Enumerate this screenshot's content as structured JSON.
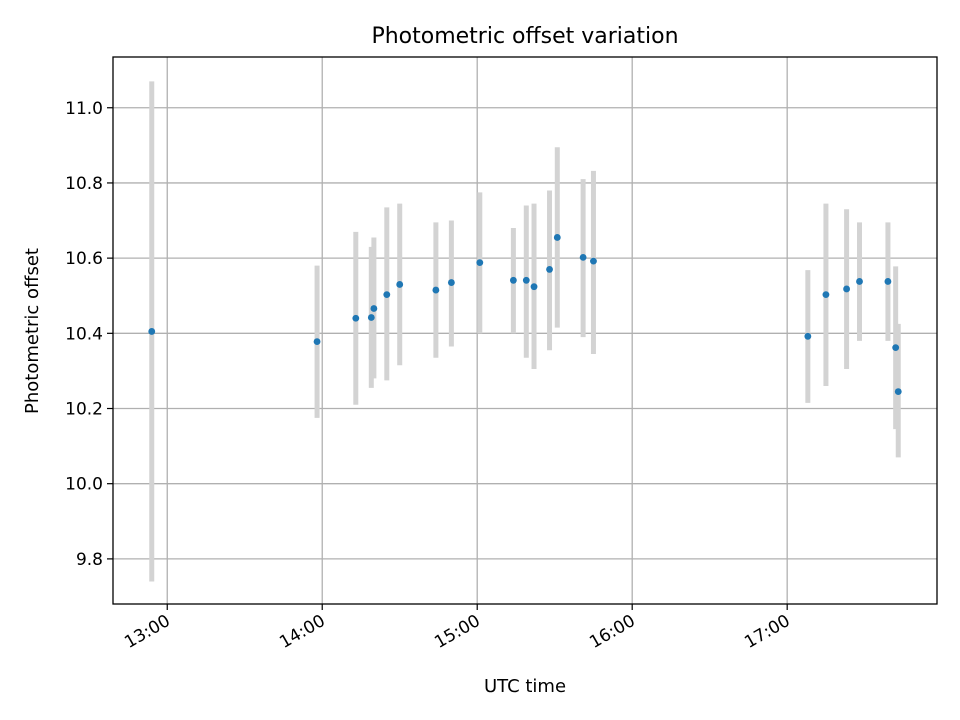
{
  "chart_data": {
    "type": "scatter",
    "title": "Photometric offset variation",
    "xlabel": "UTC time",
    "ylabel": "Photometric offset",
    "xlim": [
      "12:39",
      "17:58"
    ],
    "ylim": [
      9.68,
      11.135
    ],
    "x_ticks": [
      "13:00",
      "14:00",
      "15:00",
      "16:00",
      "17:00"
    ],
    "y_ticks": [
      9.8,
      10.0,
      10.2,
      10.4,
      10.6,
      10.8,
      11.0
    ],
    "y_tick_labels": [
      "9.8",
      "10.0",
      "10.2",
      "10.4",
      "10.6",
      "10.8",
      "11.0"
    ],
    "grid": true,
    "colors": {
      "point": "#1f77b4",
      "errorbar": "#d3d3d3"
    },
    "points": [
      {
        "t": "12:54",
        "y": 10.405,
        "low": 9.74,
        "high": 11.07
      },
      {
        "t": "13:58",
        "y": 10.378,
        "low": 10.175,
        "high": 10.58
      },
      {
        "t": "14:13",
        "y": 10.44,
        "low": 10.21,
        "high": 10.67
      },
      {
        "t": "14:19",
        "y": 10.442,
        "low": 10.255,
        "high": 10.63
      },
      {
        "t": "14:20",
        "y": 10.466,
        "low": 10.28,
        "high": 10.655
      },
      {
        "t": "14:25",
        "y": 10.503,
        "low": 10.275,
        "high": 10.735
      },
      {
        "t": "14:30",
        "y": 10.53,
        "low": 10.315,
        "high": 10.745
      },
      {
        "t": "14:44",
        "y": 10.515,
        "low": 10.335,
        "high": 10.695
      },
      {
        "t": "14:50",
        "y": 10.535,
        "low": 10.365,
        "high": 10.7
      },
      {
        "t": "15:01",
        "y": 10.588,
        "low": 10.4,
        "high": 10.775
      },
      {
        "t": "15:14",
        "y": 10.541,
        "low": 10.4,
        "high": 10.68
      },
      {
        "t": "15:19",
        "y": 10.541,
        "low": 10.335,
        "high": 10.74
      },
      {
        "t": "15:22",
        "y": 10.524,
        "low": 10.305,
        "high": 10.745
      },
      {
        "t": "15:28",
        "y": 10.57,
        "low": 10.355,
        "high": 10.78
      },
      {
        "t": "15:31",
        "y": 10.655,
        "low": 10.415,
        "high": 10.895
      },
      {
        "t": "15:41",
        "y": 10.602,
        "low": 10.39,
        "high": 10.81
      },
      {
        "t": "15:45",
        "y": 10.592,
        "low": 10.345,
        "high": 10.832
      },
      {
        "t": "17:08",
        "y": 10.392,
        "low": 10.215,
        "high": 10.568
      },
      {
        "t": "17:15",
        "y": 10.503,
        "low": 10.26,
        "high": 10.745
      },
      {
        "t": "17:23",
        "y": 10.518,
        "low": 10.305,
        "high": 10.73
      },
      {
        "t": "17:28",
        "y": 10.538,
        "low": 10.38,
        "high": 10.695
      },
      {
        "t": "17:39",
        "y": 10.538,
        "low": 10.38,
        "high": 10.695
      },
      {
        "t": "17:42",
        "y": 10.362,
        "low": 10.145,
        "high": 10.578
      },
      {
        "t": "17:43",
        "y": 10.245,
        "low": 10.07,
        "high": 10.425
      }
    ]
  }
}
